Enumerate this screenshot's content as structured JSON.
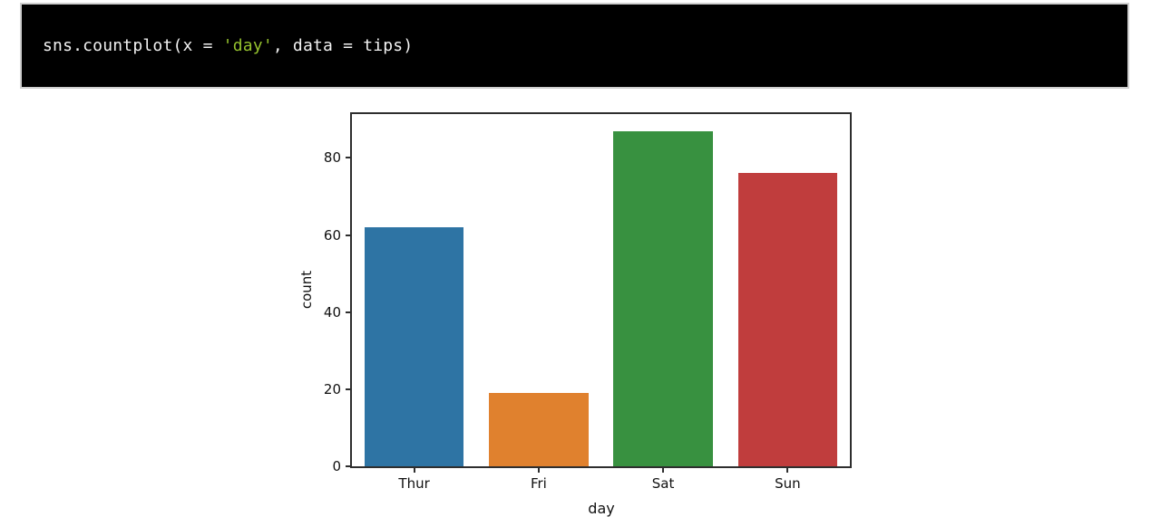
{
  "code_cell": {
    "code_prefix": "sns.countplot(x = ",
    "code_string": "'day'",
    "code_suffix": ", data = tips)",
    "background_color": "#000000",
    "text_color": "#f2f2f2",
    "string_color": "#95c22e"
  },
  "chart_data": {
    "type": "bar",
    "xlabel": "day",
    "ylabel": "count",
    "categories": [
      "Thur",
      "Fri",
      "Sat",
      "Sun"
    ],
    "values": [
      62,
      19,
      87,
      76
    ],
    "bar_colors": [
      "#2e74a4",
      "#e0812e",
      "#389140",
      "#c03d3d"
    ],
    "yticks": [
      0,
      20,
      40,
      60,
      80
    ],
    "ylim": [
      0,
      91.35
    ],
    "grid": false,
    "legend_position": "none",
    "spine_color": "#2e2e2e"
  }
}
